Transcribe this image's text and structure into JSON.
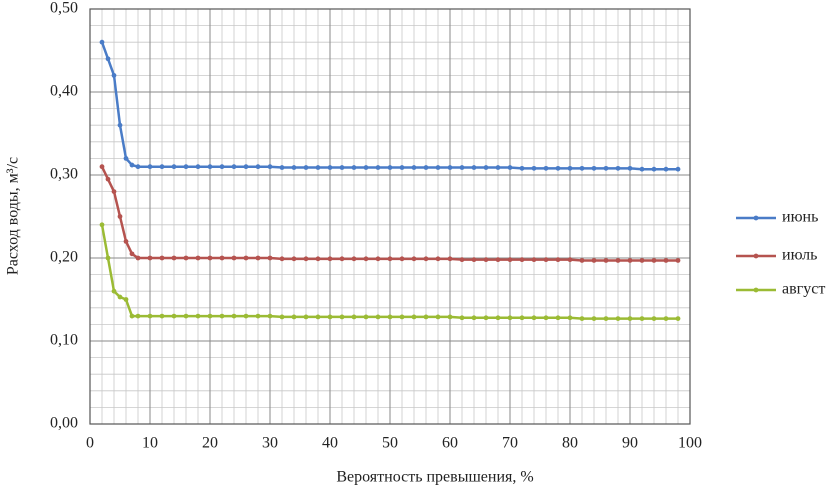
{
  "chart_data": {
    "type": "line",
    "x_label": "Вероятность превышения, %",
    "y_label": "Расход воды, м³/с",
    "x": [
      2,
      3,
      4,
      5,
      6,
      7,
      8,
      10,
      12,
      14,
      16,
      18,
      20,
      22,
      24,
      26,
      28,
      30,
      32,
      34,
      36,
      38,
      40,
      42,
      44,
      46,
      48,
      50,
      52,
      54,
      56,
      58,
      60,
      62,
      64,
      66,
      68,
      70,
      72,
      74,
      76,
      78,
      80,
      82,
      84,
      86,
      88,
      90,
      92,
      94,
      96,
      98
    ],
    "series": [
      {
        "name": "июнь",
        "color": "#4a7cc7",
        "values": [
          0.46,
          0.44,
          0.42,
          0.36,
          0.32,
          0.312,
          0.31,
          0.31,
          0.31,
          0.31,
          0.31,
          0.31,
          0.31,
          0.31,
          0.31,
          0.31,
          0.31,
          0.31,
          0.309,
          0.309,
          0.309,
          0.309,
          0.309,
          0.309,
          0.309,
          0.309,
          0.309,
          0.309,
          0.309,
          0.309,
          0.309,
          0.309,
          0.309,
          0.309,
          0.309,
          0.309,
          0.309,
          0.309,
          0.308,
          0.308,
          0.308,
          0.308,
          0.308,
          0.308,
          0.308,
          0.308,
          0.308,
          0.308,
          0.307,
          0.307,
          0.307,
          0.307
        ]
      },
      {
        "name": "июль",
        "color": "#b5534f",
        "values": [
          0.31,
          0.295,
          0.28,
          0.25,
          0.22,
          0.205,
          0.2,
          0.2,
          0.2,
          0.2,
          0.2,
          0.2,
          0.2,
          0.2,
          0.2,
          0.2,
          0.2,
          0.2,
          0.199,
          0.199,
          0.199,
          0.199,
          0.199,
          0.199,
          0.199,
          0.199,
          0.199,
          0.199,
          0.199,
          0.199,
          0.199,
          0.199,
          0.199,
          0.198,
          0.198,
          0.198,
          0.198,
          0.198,
          0.198,
          0.198,
          0.198,
          0.198,
          0.198,
          0.197,
          0.197,
          0.197,
          0.197,
          0.197,
          0.197,
          0.197,
          0.197,
          0.197
        ]
      },
      {
        "name": "август",
        "color": "#9bbb34",
        "values": [
          0.24,
          0.2,
          0.16,
          0.153,
          0.15,
          0.13,
          0.13,
          0.13,
          0.13,
          0.13,
          0.13,
          0.13,
          0.13,
          0.13,
          0.13,
          0.13,
          0.13,
          0.13,
          0.129,
          0.129,
          0.129,
          0.129,
          0.129,
          0.129,
          0.129,
          0.129,
          0.129,
          0.129,
          0.129,
          0.129,
          0.129,
          0.129,
          0.129,
          0.128,
          0.128,
          0.128,
          0.128,
          0.128,
          0.128,
          0.128,
          0.128,
          0.128,
          0.128,
          0.127,
          0.127,
          0.127,
          0.127,
          0.127,
          0.127,
          0.127,
          0.127,
          0.127
        ]
      }
    ],
    "xlim": [
      0,
      100
    ],
    "xticks": [
      0,
      10,
      20,
      30,
      40,
      50,
      60,
      70,
      80,
      90,
      100
    ],
    "ylim": [
      0,
      0.5
    ],
    "yticks": [
      {
        "value": 0,
        "label": "0,00"
      },
      {
        "value": 0.1,
        "label": "0,10"
      },
      {
        "value": 0.2,
        "label": "0,20"
      },
      {
        "value": 0.3,
        "label": "0,30"
      },
      {
        "value": 0.4,
        "label": "0,40"
      },
      {
        "value": 0.5,
        "label": "0,50"
      }
    ],
    "grid": true,
    "minor_grid": true,
    "legend": "right"
  }
}
